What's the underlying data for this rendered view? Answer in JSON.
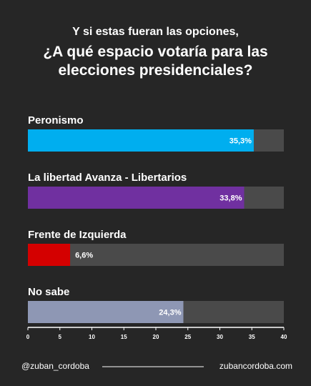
{
  "chart_data": {
    "type": "hbar",
    "subtitle": "Y si estas fueran las opciones,",
    "title": "¿A qué espacio votaría para las elecciones presidenciales?",
    "categories": [
      "Peronismo",
      "La libertad Avanza - Libertarios",
      "Frente de Izquierda",
      "No sabe"
    ],
    "values": [
      35.3,
      33.8,
      6.6,
      24.3
    ],
    "value_labels": [
      "35,3%",
      "33,8%",
      "6,6%",
      "24,3%"
    ],
    "colors": [
      "#00aeef",
      "#7030a0",
      "#d40000",
      "#8e97b4"
    ],
    "xlim": [
      0,
      40
    ],
    "xticks": [
      0,
      5,
      10,
      15,
      20,
      25,
      30,
      35,
      40
    ],
    "grid": false
  },
  "footer": {
    "left": "@zuban_cordoba",
    "right": "zubancordoba.com"
  }
}
